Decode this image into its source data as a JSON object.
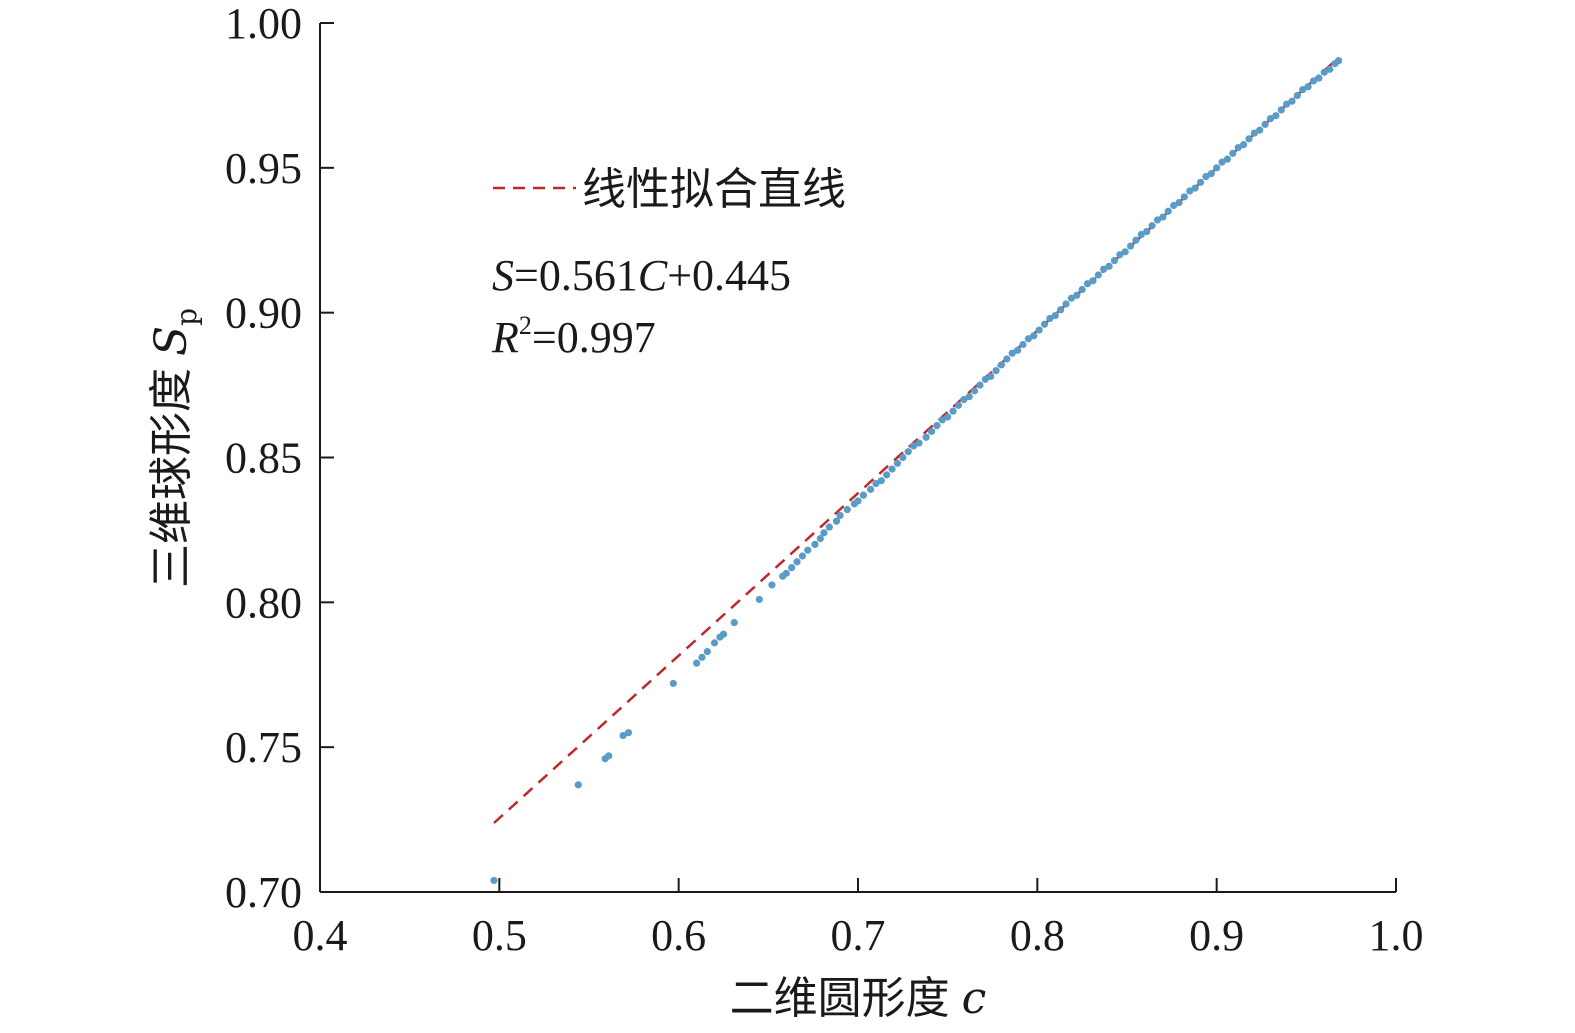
{
  "chart_data": {
    "type": "scatter",
    "xlabel_text": "二维圆形度",
    "xlabel_var": "c",
    "ylabel_text": "三维球形度",
    "ylabel_var": "S",
    "ylabel_sub": "p",
    "xlim": [
      0.4,
      1.0
    ],
    "ylim": [
      0.7,
      1.0
    ],
    "x_ticks": [
      "0.4",
      "0.5",
      "0.6",
      "0.7",
      "0.8",
      "0.9",
      "1.0"
    ],
    "y_ticks": [
      "0.70",
      "0.75",
      "0.80",
      "0.85",
      "0.90",
      "0.95",
      "1.00"
    ],
    "grid": false,
    "legend": {
      "position": "top-left",
      "entries": [
        {
          "label": "线性拟合直线",
          "style": "dashed",
          "color": "#c0282d"
        }
      ]
    },
    "fit_line": {
      "slope": 0.561,
      "intercept": 0.445,
      "x_range": [
        0.497,
        0.968
      ],
      "color": "#c0282d"
    },
    "annotation": {
      "eq_s": "S",
      "eq_rest1": "=0.561",
      "eq_c": "C",
      "eq_rest2": "+0.445",
      "r_var": "R",
      "r_sup": "2",
      "r_rest": "=0.997"
    },
    "series": [
      {
        "color": "#5b9bc8",
        "points": [
          [
            0.497,
            0.704
          ],
          [
            0.544,
            0.737
          ],
          [
            0.559,
            0.746
          ],
          [
            0.561,
            0.747
          ],
          [
            0.569,
            0.754
          ],
          [
            0.572,
            0.755
          ],
          [
            0.597,
            0.772
          ],
          [
            0.61,
            0.779
          ],
          [
            0.613,
            0.781
          ],
          [
            0.616,
            0.783
          ],
          [
            0.62,
            0.786
          ],
          [
            0.623,
            0.788
          ],
          [
            0.625,
            0.789
          ],
          [
            0.631,
            0.793
          ],
          [
            0.645,
            0.801
          ],
          [
            0.652,
            0.806
          ],
          [
            0.658,
            0.809
          ],
          [
            0.66,
            0.81
          ],
          [
            0.663,
            0.812
          ],
          [
            0.666,
            0.814
          ],
          [
            0.669,
            0.816
          ],
          [
            0.672,
            0.818
          ],
          [
            0.676,
            0.82
          ],
          [
            0.679,
            0.822
          ],
          [
            0.681,
            0.824
          ],
          [
            0.684,
            0.826
          ],
          [
            0.688,
            0.828
          ],
          [
            0.69,
            0.83
          ],
          [
            0.694,
            0.832
          ],
          [
            0.698,
            0.834
          ],
          [
            0.7,
            0.835
          ],
          [
            0.703,
            0.837
          ],
          [
            0.707,
            0.839
          ],
          [
            0.71,
            0.841
          ],
          [
            0.713,
            0.842
          ],
          [
            0.716,
            0.844
          ],
          [
            0.719,
            0.846
          ],
          [
            0.722,
            0.848
          ],
          [
            0.725,
            0.85
          ],
          [
            0.728,
            0.852
          ],
          [
            0.731,
            0.854
          ],
          [
            0.734,
            0.855
          ],
          [
            0.738,
            0.857
          ],
          [
            0.741,
            0.859
          ],
          [
            0.744,
            0.861
          ],
          [
            0.747,
            0.863
          ],
          [
            0.75,
            0.864
          ],
          [
            0.753,
            0.866
          ],
          [
            0.756,
            0.868
          ],
          [
            0.759,
            0.87
          ],
          [
            0.762,
            0.871
          ],
          [
            0.765,
            0.873
          ],
          [
            0.768,
            0.875
          ],
          [
            0.771,
            0.877
          ],
          [
            0.774,
            0.878
          ],
          [
            0.777,
            0.88
          ],
          [
            0.78,
            0.882
          ],
          [
            0.783,
            0.884
          ],
          [
            0.786,
            0.886
          ],
          [
            0.789,
            0.887
          ],
          [
            0.792,
            0.889
          ],
          [
            0.795,
            0.891
          ],
          [
            0.798,
            0.892
          ],
          [
            0.801,
            0.894
          ],
          [
            0.804,
            0.896
          ],
          [
            0.807,
            0.898
          ],
          [
            0.81,
            0.899
          ],
          [
            0.813,
            0.901
          ],
          [
            0.816,
            0.903
          ],
          [
            0.819,
            0.905
          ],
          [
            0.822,
            0.906
          ],
          [
            0.825,
            0.908
          ],
          [
            0.828,
            0.91
          ],
          [
            0.831,
            0.911
          ],
          [
            0.834,
            0.913
          ],
          [
            0.837,
            0.915
          ],
          [
            0.84,
            0.916
          ],
          [
            0.843,
            0.918
          ],
          [
            0.846,
            0.92
          ],
          [
            0.849,
            0.921
          ],
          [
            0.852,
            0.923
          ],
          [
            0.855,
            0.925
          ],
          [
            0.858,
            0.927
          ],
          [
            0.861,
            0.928
          ],
          [
            0.864,
            0.93
          ],
          [
            0.867,
            0.932
          ],
          [
            0.87,
            0.933
          ],
          [
            0.873,
            0.935
          ],
          [
            0.876,
            0.937
          ],
          [
            0.879,
            0.938
          ],
          [
            0.882,
            0.94
          ],
          [
            0.885,
            0.942
          ],
          [
            0.888,
            0.943
          ],
          [
            0.891,
            0.945
          ],
          [
            0.894,
            0.947
          ],
          [
            0.897,
            0.948
          ],
          [
            0.9,
            0.95
          ],
          [
            0.903,
            0.952
          ],
          [
            0.906,
            0.953
          ],
          [
            0.909,
            0.955
          ],
          [
            0.912,
            0.957
          ],
          [
            0.915,
            0.958
          ],
          [
            0.918,
            0.96
          ],
          [
            0.921,
            0.962
          ],
          [
            0.924,
            0.963
          ],
          [
            0.927,
            0.965
          ],
          [
            0.93,
            0.967
          ],
          [
            0.933,
            0.968
          ],
          [
            0.936,
            0.97
          ],
          [
            0.939,
            0.972
          ],
          [
            0.942,
            0.973
          ],
          [
            0.945,
            0.975
          ],
          [
            0.948,
            0.977
          ],
          [
            0.951,
            0.978
          ],
          [
            0.954,
            0.98
          ],
          [
            0.957,
            0.981
          ],
          [
            0.96,
            0.983
          ],
          [
            0.963,
            0.984
          ],
          [
            0.966,
            0.986
          ],
          [
            0.968,
            0.987
          ]
        ]
      }
    ]
  }
}
